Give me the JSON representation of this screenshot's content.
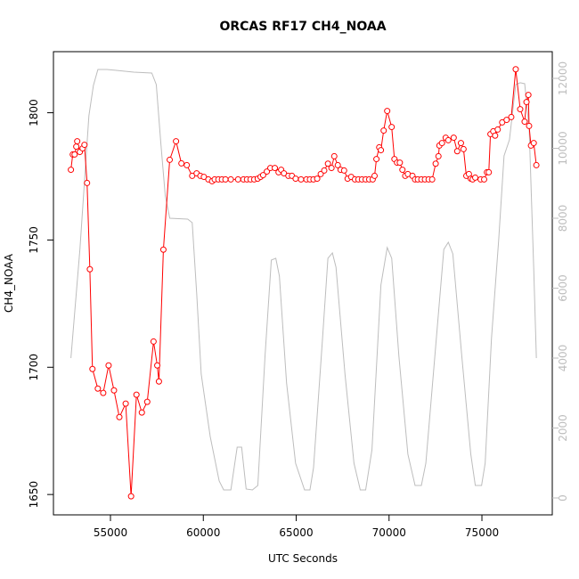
{
  "chart_data": {
    "type": "line",
    "title": "ORCAS RF17 CH4_NOAA",
    "x_label": "UTC Seconds",
    "y_label": "CH4_NOAA",
    "xlim": [
      51930,
      78788
    ],
    "ylim": [
      1642,
      1824
    ],
    "y2lim": [
      -484,
      12764
    ],
    "xticks": [
      55000,
      60000,
      65000,
      70000,
      75000
    ],
    "yticks": [
      1650,
      1700,
      1750,
      1800
    ],
    "y2ticks": [
      0,
      2000,
      4000,
      6000,
      8000,
      10000,
      12000
    ],
    "grid": false,
    "series": [
      {
        "color": "#ff0000",
        "markers": true,
        "x": [
          52870,
          52970,
          53070,
          53160,
          53210,
          53350,
          53500,
          53600,
          53740,
          53890,
          54030,
          54320,
          54610,
          54900,
          55190,
          55480,
          55820,
          56110,
          56400,
          56690,
          56980,
          57320,
          57520,
          57610,
          57850,
          58190,
          58530,
          58820,
          59110,
          59400,
          59640,
          59840,
          60030,
          60270,
          60470,
          60610,
          60810,
          61000,
          61190,
          61480,
          61870,
          62160,
          62350,
          62540,
          62740,
          62930,
          63080,
          63220,
          63420,
          63610,
          63850,
          64050,
          64190,
          64340,
          64580,
          64770,
          64970,
          65260,
          65550,
          65740,
          65930,
          66130,
          66320,
          66510,
          66710,
          66900,
          67050,
          67240,
          67390,
          67580,
          67770,
          67960,
          68160,
          68350,
          68540,
          68740,
          68930,
          69120,
          69220,
          69320,
          69470,
          69560,
          69710,
          69900,
          70140,
          70290,
          70430,
          70580,
          70720,
          70870,
          71010,
          71260,
          71400,
          71550,
          71740,
          71930,
          72130,
          72320,
          72510,
          72660,
          72710,
          72850,
          73050,
          73190,
          73480,
          73670,
          73870,
          74010,
          74160,
          74300,
          74400,
          74500,
          74640,
          74930,
          75120,
          75270,
          75370,
          75460,
          75610,
          75710,
          75850,
          76090,
          76330,
          76580,
          76820,
          77060,
          77300,
          77400,
          77500,
          77540,
          77640,
          77790,
          77930
        ],
        "values": [
          1777.6,
          1783.6,
          1783.6,
          1786.7,
          1788.8,
          1784.6,
          1786,
          1787.4,
          1772.4,
          1738.5,
          1699.3,
          1691.6,
          1689.9,
          1700.7,
          1690.9,
          1680.4,
          1685.7,
          1649.3,
          1689.2,
          1682.2,
          1686.4,
          1710.1,
          1700.7,
          1694.4,
          1746.2,
          1781.5,
          1788.8,
          1780.1,
          1779.4,
          1775.2,
          1776.2,
          1775.2,
          1774.8,
          1773.8,
          1773.1,
          1773.8,
          1773.8,
          1773.8,
          1773.8,
          1773.8,
          1773.8,
          1773.8,
          1773.8,
          1773.8,
          1773.8,
          1774.1,
          1774.8,
          1775.5,
          1776.9,
          1778.3,
          1778.3,
          1776.6,
          1777.6,
          1776.2,
          1775.2,
          1775.2,
          1774.1,
          1773.8,
          1773.8,
          1773.8,
          1773.8,
          1774.1,
          1775.9,
          1777.3,
          1780,
          1778.3,
          1782.9,
          1779.4,
          1777.6,
          1777.3,
          1774.1,
          1774.8,
          1773.8,
          1773.8,
          1773.8,
          1773.8,
          1773.8,
          1773.8,
          1775.2,
          1781.8,
          1786.4,
          1785.3,
          1793,
          1800.7,
          1794.4,
          1781.8,
          1780.4,
          1780.4,
          1777.6,
          1775.2,
          1775.9,
          1775.2,
          1773.8,
          1773.8,
          1773.8,
          1773.8,
          1773.8,
          1773.8,
          1780,
          1782.9,
          1787.1,
          1788.1,
          1790.2,
          1789.2,
          1790.2,
          1784.9,
          1788.1,
          1785.7,
          1775.2,
          1775.9,
          1774.1,
          1773.8,
          1774.5,
          1773.8,
          1773.8,
          1776.6,
          1776.6,
          1791.6,
          1792.7,
          1791,
          1793.4,
          1796.2,
          1797.2,
          1798.3,
          1817.1,
          1801.4,
          1796.5,
          1804.2,
          1807,
          1794.8,
          1787.1,
          1788.1,
          1779.4
        ]
      },
      {
        "color": "#bdbdbd",
        "axis": "y2",
        "markers": false,
        "x": [
          52871,
          53355,
          53839,
          54081,
          54323,
          54806,
          56258,
          57225,
          57467,
          57709,
          57951,
          58193,
          59160,
          59402,
          59644,
          59886,
          60370,
          60854,
          61096,
          61483,
          61822,
          62063,
          62305,
          62644,
          62934,
          63321,
          63660,
          63902,
          64095,
          64482,
          64966,
          65450,
          65740,
          65934,
          66418,
          66708,
          66950,
          67143,
          67627,
          68111,
          68450,
          68740,
          69079,
          69562,
          69901,
          70143,
          70530,
          71014,
          71401,
          71740,
          71981,
          72465,
          72949,
          73191,
          73433,
          73917,
          74401,
          74643,
          74982,
          75175,
          75514,
          75901,
          76191,
          76482,
          76820,
          77061,
          77303,
          77545,
          77787,
          77932
        ],
        "values": [
          4000,
          7109,
          10930,
          11797,
          12255,
          12255,
          12179,
          12154,
          11823,
          10165,
          8637,
          8000,
          7975,
          7873,
          5835,
          3542,
          1758,
          484,
          229,
          229,
          1452,
          1452,
          255,
          229,
          357,
          4051,
          6803,
          6854,
          6345,
          3287,
          994,
          229,
          229,
          866,
          4561,
          6854,
          7007,
          6599,
          3542,
          994,
          229,
          229,
          1376,
          6090,
          7160,
          6854,
          4051,
          1249,
          357,
          357,
          994,
          4051,
          7109,
          7313,
          6982,
          4051,
          1249,
          357,
          357,
          994,
          4561,
          7364,
          9784,
          10243,
          11823,
          11874,
          11848,
          10549,
          6599,
          4000
        ]
      }
    ]
  }
}
